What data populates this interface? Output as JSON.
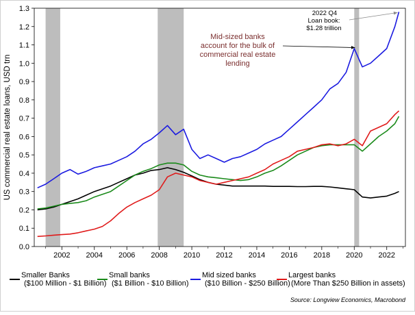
{
  "chart_data": {
    "type": "line",
    "title": "",
    "xlabel": "",
    "ylabel": "US commercial real estate loans, USD trn",
    "xlim": [
      2000.3,
      2023.15
    ],
    "ylim": [
      0,
      1.3
    ],
    "y_ticks": [
      "0.0",
      "0.1",
      "0.2",
      "0.3",
      "0.4",
      "0.5",
      "0.6",
      "0.7",
      "0.8",
      "0.9",
      "1.0",
      "1.1",
      "1.2",
      "1.3"
    ],
    "x_ticks": [
      "2002",
      "2004",
      "2006",
      "2008",
      "2010",
      "2012",
      "2014",
      "2016",
      "2018",
      "2020",
      "2022"
    ],
    "recessions": [
      [
        2001.0,
        2001.9
      ],
      [
        2007.9,
        2009.5
      ],
      [
        2020.0,
        2020.3
      ]
    ],
    "x": [
      2000.5,
      2001,
      2001.5,
      2002,
      2002.5,
      2003,
      2003.5,
      2004,
      2004.5,
      2005,
      2005.5,
      2006,
      2006.5,
      2007,
      2007.5,
      2008,
      2008.5,
      2009,
      2009.5,
      2010,
      2010.5,
      2011,
      2011.5,
      2012,
      2012.5,
      2013,
      2013.5,
      2014,
      2014.5,
      2015,
      2015.5,
      2016,
      2016.5,
      2017,
      2017.5,
      2018,
      2018.5,
      2019,
      2019.5,
      2020,
      2020.5,
      2021,
      2021.5,
      2022,
      2022.5,
      2022.75
    ],
    "series": [
      {
        "name": "Smaller Banks ($100 Million - $1 Billion)",
        "color": "#000000",
        "values": [
          0.2,
          0.205,
          0.215,
          0.23,
          0.245,
          0.26,
          0.28,
          0.3,
          0.315,
          0.33,
          0.35,
          0.37,
          0.39,
          0.4,
          0.415,
          0.42,
          0.43,
          0.42,
          0.405,
          0.385,
          0.365,
          0.35,
          0.34,
          0.335,
          0.33,
          0.33,
          0.33,
          0.33,
          0.33,
          0.328,
          0.328,
          0.328,
          0.327,
          0.327,
          0.328,
          0.328,
          0.325,
          0.32,
          0.315,
          0.31,
          0.27,
          0.265,
          0.27,
          0.275,
          0.29,
          0.3
        ]
      },
      {
        "name": "Small banks ($1 Billion - $10 Billion)",
        "color": "#1a8a1a",
        "values": [
          0.205,
          0.21,
          0.22,
          0.23,
          0.235,
          0.24,
          0.25,
          0.27,
          0.285,
          0.3,
          0.33,
          0.36,
          0.39,
          0.41,
          0.425,
          0.445,
          0.455,
          0.455,
          0.445,
          0.41,
          0.39,
          0.38,
          0.375,
          0.37,
          0.365,
          0.36,
          0.365,
          0.38,
          0.4,
          0.415,
          0.44,
          0.47,
          0.5,
          0.52,
          0.54,
          0.55,
          0.555,
          0.555,
          0.555,
          0.555,
          0.52,
          0.56,
          0.6,
          0.63,
          0.67,
          0.71
        ]
      },
      {
        "name": "Mid sized banks ($10 Billion - $250 Billion)",
        "color": "#1a1ae0",
        "values": [
          0.32,
          0.34,
          0.37,
          0.4,
          0.42,
          0.395,
          0.41,
          0.43,
          0.44,
          0.45,
          0.47,
          0.49,
          0.52,
          0.56,
          0.585,
          0.62,
          0.66,
          0.61,
          0.64,
          0.53,
          0.48,
          0.5,
          0.48,
          0.46,
          0.48,
          0.49,
          0.51,
          0.53,
          0.56,
          0.58,
          0.6,
          0.64,
          0.68,
          0.72,
          0.76,
          0.8,
          0.86,
          0.89,
          0.95,
          1.08,
          0.98,
          1.0,
          1.04,
          1.08,
          1.2,
          1.28
        ]
      },
      {
        "name": "Largest banks (More Than $250 Billion in assets)",
        "color": "#e01a1a",
        "values": [
          0.055,
          0.058,
          0.062,
          0.065,
          0.068,
          0.075,
          0.085,
          0.095,
          0.11,
          0.14,
          0.18,
          0.215,
          0.24,
          0.26,
          0.28,
          0.31,
          0.38,
          0.4,
          0.39,
          0.38,
          0.36,
          0.35,
          0.34,
          0.35,
          0.36,
          0.37,
          0.38,
          0.4,
          0.42,
          0.45,
          0.47,
          0.49,
          0.52,
          0.53,
          0.54,
          0.555,
          0.56,
          0.55,
          0.56,
          0.585,
          0.55,
          0.63,
          0.65,
          0.67,
          0.72,
          0.74
        ]
      }
    ],
    "annotations": [
      {
        "text_lines": [
          "2022 Q4",
          "Loan book:",
          "$1.28 trillion"
        ],
        "points_to": [
          2022.75,
          1.28
        ]
      },
      {
        "text_lines": [
          "Mid-sized banks",
          "account for the bulk of",
          "commercial real estate",
          "lending"
        ],
        "points_to": [
          2020.3,
          1.1
        ]
      }
    ],
    "legend": [
      {
        "label_lines": [
          "Smaller Banks",
          "($100 Million - $1 Billion)"
        ],
        "color": "#000000"
      },
      {
        "label_lines": [
          "Small banks",
          "($1 Billion - $10 Billion)"
        ],
        "color": "#1a8a1a"
      },
      {
        "label_lines": [
          "Mid sized banks",
          "($10 Billion - $250 Billion)"
        ],
        "color": "#1a1ae0"
      },
      {
        "label_lines": [
          "Largest banks",
          "(More Than $250 Billion in assets)"
        ],
        "color": "#e01a1a"
      }
    ],
    "source": "Source: Longview Economics, Macrobond"
  }
}
